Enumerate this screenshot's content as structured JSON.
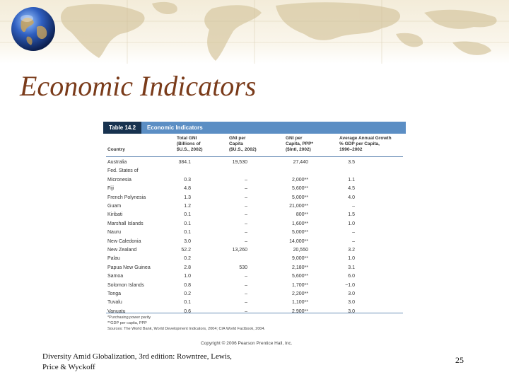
{
  "slide": {
    "title": "Economic Indicators",
    "source_credit": "Diversity Amid Globalization, 3rd edition:  Rowntree, Lewis, Price & Wyckoff",
    "page_number": "25"
  },
  "theme": {
    "title_color": "#7a3b1a",
    "table_header_bg": "#5b8ec4",
    "table_number_bg": "#17324f"
  },
  "decor": {
    "background_icon": "world-map-icon",
    "logo_icon": "globe-icon"
  },
  "table": {
    "number": "Table 14.2",
    "name": "Economic Indicators",
    "columns": [
      "Country",
      "Total GNI\n(Billions of\n$U.S., 2002)",
      "GNI per\nCapita\n($U.S., 2002)",
      "GNI per\nCapita, PPP*\n($Intl, 2002)",
      "Average Annual Growth\n% GDP per Capita,\n1990–2002"
    ],
    "rows": [
      [
        "Australia",
        "384.1",
        "19,530",
        "27,440",
        "3.5"
      ],
      [
        "Fed. States of",
        "",
        "",
        "",
        ""
      ],
      [
        "  Micronesia",
        "0.3",
        "–",
        "2,000**",
        "1.1"
      ],
      [
        "Fiji",
        "4.8",
        "–",
        "5,600**",
        "4.5"
      ],
      [
        "French Polynesia",
        "1.3",
        "–",
        "5,000**",
        "4.0"
      ],
      [
        "Guam",
        "1.2",
        "–",
        "21,000**",
        "–"
      ],
      [
        "Kiribati",
        "0.1",
        "–",
        "800**",
        "1.5"
      ],
      [
        "Marshall Islands",
        "0.1",
        "–",
        "1,600**",
        "1.0"
      ],
      [
        "Nauru",
        "0.1",
        "–",
        "5,000**",
        "–"
      ],
      [
        "New Caledonia",
        "3.0",
        "–",
        "14,000**",
        "–"
      ],
      [
        "New Zealand",
        "52.2",
        "13,260",
        "20,550",
        "3.2"
      ],
      [
        "Palau",
        "0.2",
        "",
        "9,000**",
        "1.0"
      ],
      [
        "Papua New Guinea",
        "2.8",
        "530",
        "2,180**",
        "3.1"
      ],
      [
        "Samoa",
        "1.0",
        "–",
        "5,600**",
        "6.0"
      ],
      [
        "Solomon Islands",
        "0.8",
        "–",
        "1,700**",
        "−1.0"
      ],
      [
        "Tonga",
        "0.2",
        "–",
        "2,200**",
        "3.0"
      ],
      [
        "Tuvalu",
        "0.1",
        "–",
        "1,100**",
        "3.0"
      ],
      [
        "Vanuatu",
        "0.6",
        "–",
        "2,900**",
        "3.0"
      ]
    ],
    "footnotes": [
      "*Purchasing power parity",
      "**GDP per capita, PPP",
      "Sources: The World Bank, World Development Indicators, 2004; CIA World Factbook, 2004."
    ],
    "copyright": "Copyright © 2006 Pearson Prentice Hall, Inc."
  }
}
